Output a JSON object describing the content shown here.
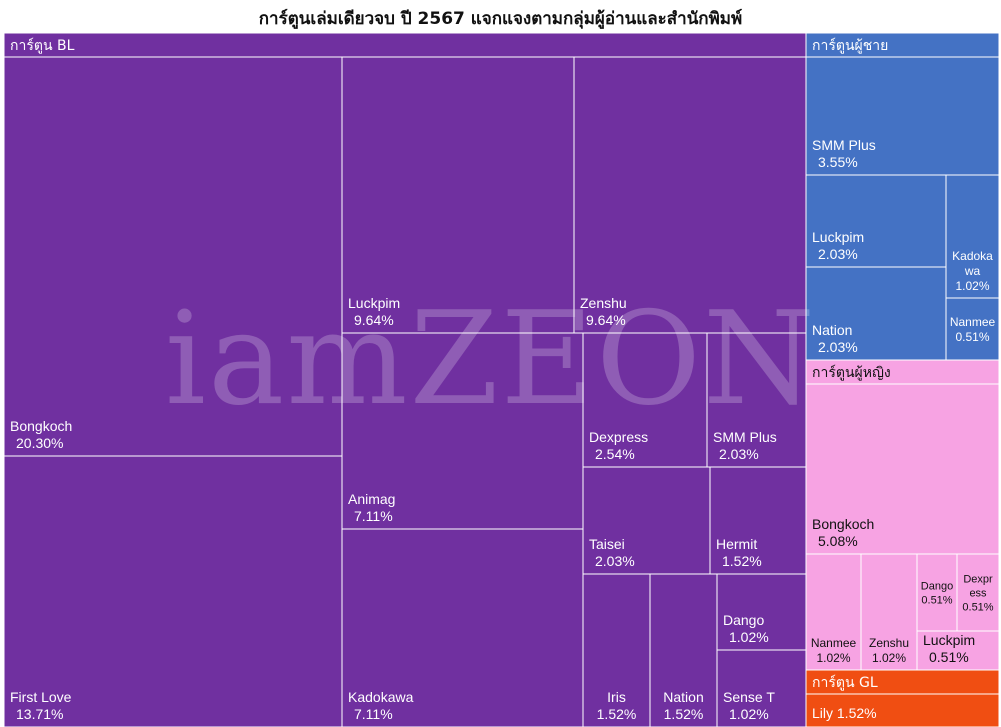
{
  "chart_data": {
    "type": "treemap",
    "title": "การ์ตูนเล่มเดียวจบ ปี 2567 แจกแจงตามกลุ่มผู้อ่านและสำนักพิมพ์",
    "watermark": "iamZEON",
    "groups": [
      {
        "name": "การ์ตูน BL",
        "color": "#7030A0",
        "items": [
          {
            "name": "Bongkoch",
            "value": 20.3,
            "label": "20.30%"
          },
          {
            "name": "First Love",
            "value": 13.71,
            "label": "13.71%"
          },
          {
            "name": "Luckpim",
            "value": 9.64,
            "label": "9.64%"
          },
          {
            "name": "Zenshu",
            "value": 9.64,
            "label": "9.64%"
          },
          {
            "name": "Animag",
            "value": 7.11,
            "label": "7.11%"
          },
          {
            "name": "Kadokawa",
            "value": 7.11,
            "label": "7.11%"
          },
          {
            "name": "Dexpress",
            "value": 2.54,
            "label": "2.54%"
          },
          {
            "name": "SMM Plus",
            "value": 2.03,
            "label": "2.03%"
          },
          {
            "name": "Taisei",
            "value": 2.03,
            "label": "2.03%"
          },
          {
            "name": "Hermit",
            "value": 1.52,
            "label": "1.52%"
          },
          {
            "name": "Iris",
            "value": 1.52,
            "label": "1.52%"
          },
          {
            "name": "Nation",
            "value": 1.52,
            "label": "1.52%"
          },
          {
            "name": "Dango",
            "value": 1.02,
            "label": "1.02%"
          },
          {
            "name": "Sense T",
            "value": 1.02,
            "label": "1.02%"
          }
        ]
      },
      {
        "name": "การ์ตูนผู้ชาย",
        "color": "#4472C4",
        "items": [
          {
            "name": "SMM Plus",
            "value": 3.55,
            "label": "3.55%"
          },
          {
            "name": "Luckpim",
            "value": 2.03,
            "label": "2.03%"
          },
          {
            "name": "Nation",
            "value": 2.03,
            "label": "2.03%"
          },
          {
            "name": "Kadokawa",
            "value": 1.02,
            "label": "1.02%"
          },
          {
            "name": "Nanmee",
            "value": 0.51,
            "label": "0.51%"
          }
        ]
      },
      {
        "name": "การ์ตูนผู้หญิง",
        "color": "#F7A3E3",
        "items": [
          {
            "name": "Bongkoch",
            "value": 5.08,
            "label": "5.08%"
          },
          {
            "name": "Nanmee",
            "value": 1.02,
            "label": "1.02%"
          },
          {
            "name": "Zenshu",
            "value": 1.02,
            "label": "1.02%"
          },
          {
            "name": "Dango",
            "value": 0.51,
            "label": "0.51%"
          },
          {
            "name": "Dexpress",
            "value": 0.51,
            "label": "0.51%"
          },
          {
            "name": "Luckpim",
            "value": 0.51,
            "label": "0.51%"
          }
        ]
      },
      {
        "name": "การ์ตูน GL",
        "color": "#F04E12",
        "items": [
          {
            "name": "Lily",
            "value": 1.52,
            "label": "1.52%"
          }
        ]
      }
    ]
  }
}
